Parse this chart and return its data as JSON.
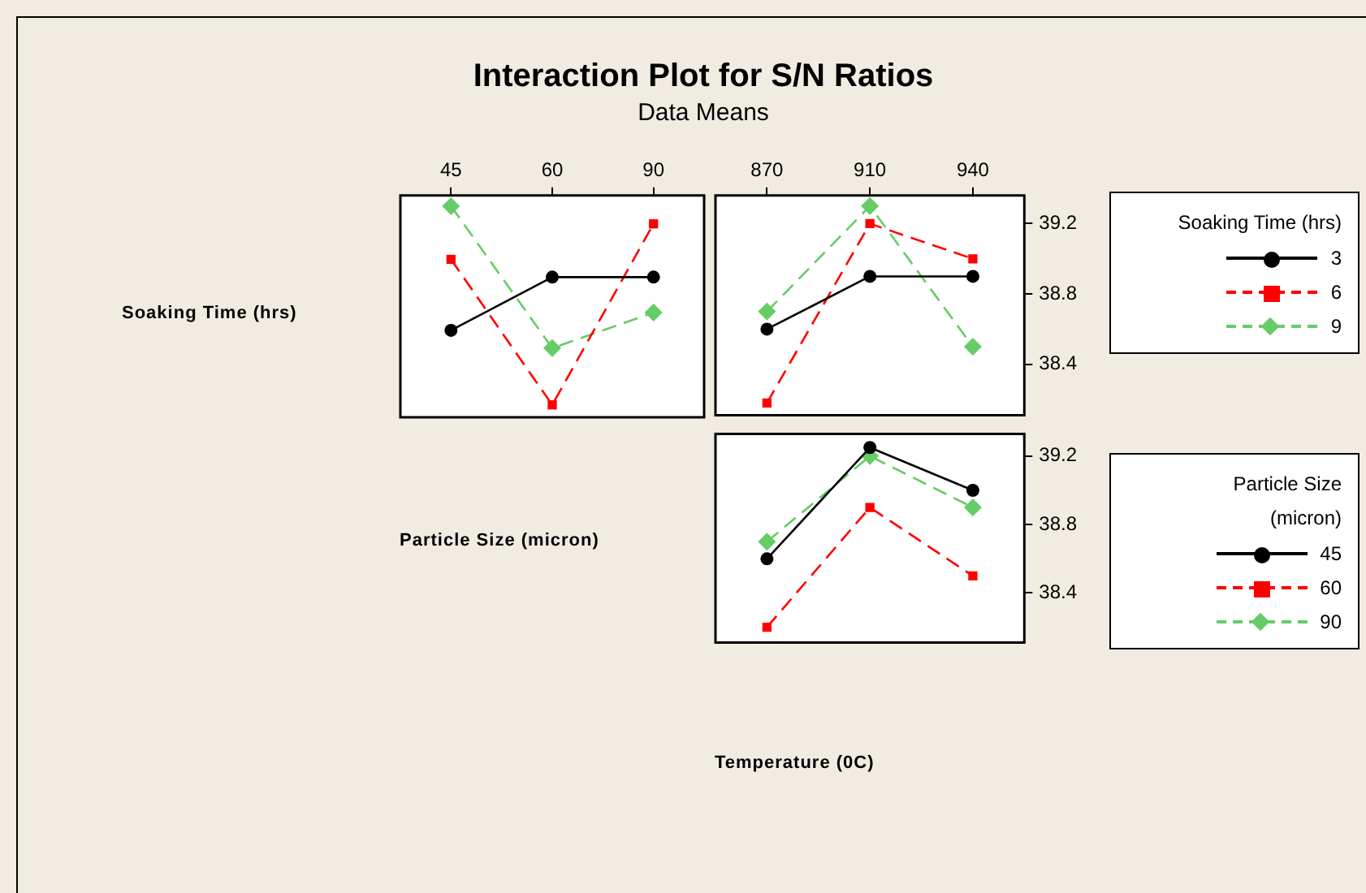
{
  "chart_data": [
    {
      "type": "line",
      "title": "Interaction Plot for S/N Ratios",
      "subtitle": "Data Means",
      "ylabel": "Soaking Time (hrs)",
      "xlabel": "Particle Size (micron)",
      "categories": [
        "45",
        "60",
        "90"
      ],
      "ylim": [
        38.11,
        39.36
      ],
      "yticks": [
        38.4,
        38.8,
        39.2
      ],
      "tick_labels": "x",
      "grid": false,
      "legend": false,
      "series": [
        {
          "color": "#000000",
          "marker": "circle",
          "line_style": "solid",
          "values": [
            38.6,
            38.9,
            38.9
          ]
        },
        {
          "color": "#ff0000",
          "marker": "square",
          "line_style": "dashed",
          "values": [
            39.0,
            38.18,
            39.2
          ]
        },
        {
          "color": "#66cc66",
          "marker": "diamond",
          "line_style": "dashed",
          "values": [
            39.3,
            38.5,
            38.7
          ]
        }
      ]
    },
    {
      "type": "line",
      "legend_title": "Soaking Time (hrs)",
      "categories": [
        "870",
        "910",
        "940"
      ],
      "ylim": [
        38.11,
        39.36
      ],
      "yticks": [
        38.4,
        38.8,
        39.2
      ],
      "grid": false,
      "legend": "right",
      "series": [
        {
          "name": "3",
          "color": "#000000",
          "marker": "circle",
          "line_style": "solid",
          "values": [
            38.6,
            38.9,
            38.9
          ]
        },
        {
          "name": "6",
          "color": "#ff0000",
          "marker": "square",
          "line_style": "dashed",
          "values": [
            38.18,
            39.2,
            39.0
          ]
        },
        {
          "name": "9",
          "color": "#66cc66",
          "marker": "diamond",
          "line_style": "dashed",
          "values": [
            38.7,
            39.3,
            38.5
          ]
        }
      ]
    },
    {
      "type": "line",
      "xlabel": "Temperature (0C)",
      "legend_title": "Particle Size (micron)",
      "categories": [
        "870",
        "910",
        "940"
      ],
      "ylim": [
        38.11,
        39.33
      ],
      "yticks": [
        38.4,
        38.8,
        39.2
      ],
      "tick_labels": "y",
      "grid": false,
      "legend": "right",
      "series": [
        {
          "name": "45",
          "color": "#000000",
          "marker": "circle",
          "line_style": "solid",
          "values": [
            38.6,
            39.25,
            39.0
          ]
        },
        {
          "name": "60",
          "color": "#ff0000",
          "marker": "square",
          "line_style": "dashed",
          "values": [
            38.2,
            38.9,
            38.5
          ]
        },
        {
          "name": "90",
          "color": "#66cc66",
          "marker": "diamond",
          "line_style": "dashed",
          "values": [
            38.7,
            39.2,
            38.9
          ]
        }
      ]
    }
  ]
}
